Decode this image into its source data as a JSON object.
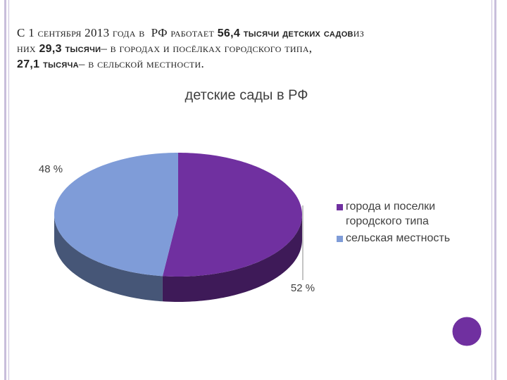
{
  "text": {
    "lines": [
      [
        {
          "text": "С 1 сентября 2013 года в  РФ работает ",
          "bold": false
        },
        {
          "text": "56,4 тысячи детских садов",
          "bold": true
        },
        {
          "text": "из",
          "bold": false
        }
      ],
      [
        {
          "text": "них ",
          "bold": false
        },
        {
          "text": "29,3 тысячи",
          "bold": true
        },
        {
          "text": "– в городах и посёлках городского типа,",
          "bold": false
        }
      ],
      [
        {
          "text": "27,1 тысяча",
          "bold": true
        },
        {
          "text": "– в сельской местности.",
          "bold": false
        }
      ]
    ]
  },
  "chart_data": {
    "type": "pie",
    "title": "детские сады в РФ",
    "categories": [
      "города и поселки городского типа",
      "сельская местность"
    ],
    "values": [
      52,
      48
    ],
    "value_labels": [
      "52 %",
      "48 %"
    ],
    "colors": [
      "#7030a0",
      "#7f9cd8"
    ],
    "legend": "right"
  }
}
